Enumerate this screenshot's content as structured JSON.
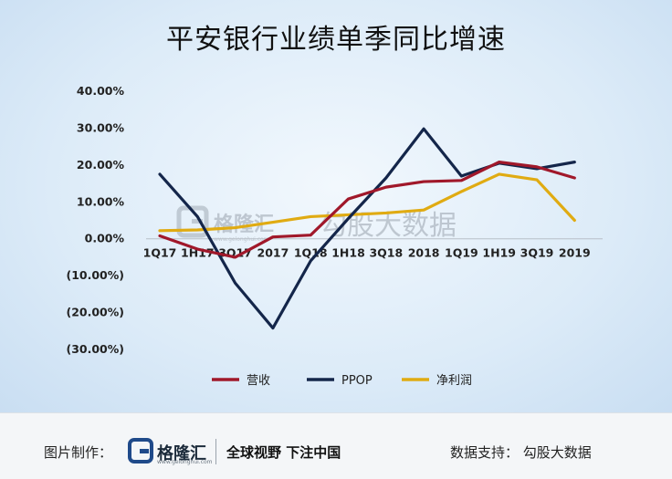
{
  "title": "平安银行业绩单季同比增速",
  "watermark": {
    "brand": "格隆汇",
    "domain": "www.gelonghui.com",
    "text": "勾股大数据"
  },
  "chart_data": {
    "type": "line",
    "categories": [
      "1Q17",
      "1H17",
      "3Q17",
      "2017",
      "1Q18",
      "1H18",
      "3Q18",
      "2018",
      "1Q19",
      "1H19",
      "3Q19",
      "2019"
    ],
    "ylim": [
      -0.3,
      0.4
    ],
    "yticks": [
      0.4,
      0.3,
      0.2,
      0.1,
      0.0,
      -0.1,
      -0.2,
      -0.3
    ],
    "ytick_labels": [
      "40.00%",
      "30.00%",
      "20.00%",
      "10.00%",
      "0.00%",
      "(10.00%)",
      "(20.00%)",
      "(30.00%)"
    ],
    "legend_position": "bottom",
    "series": [
      {
        "name": "营收",
        "color": "#a0182a",
        "values": [
          0.008,
          -0.028,
          -0.05,
          0.005,
          0.01,
          0.108,
          0.14,
          0.155,
          0.158,
          0.208,
          0.195,
          0.165
        ]
      },
      {
        "name": "PPOP",
        "color": "#14264a",
        "values": [
          0.175,
          0.06,
          -0.12,
          -0.242,
          -0.06,
          0.055,
          0.165,
          0.298,
          0.17,
          0.205,
          0.19,
          0.208
        ]
      },
      {
        "name": "净利润",
        "color": "#e0ab12",
        "values": [
          0.022,
          0.024,
          0.03,
          0.045,
          0.06,
          0.065,
          0.07,
          0.078,
          0.128,
          0.175,
          0.16,
          0.05
        ]
      }
    ]
  },
  "footer": {
    "credit": "图片制作：",
    "brand": "格隆汇",
    "domain": "www.gelonghui.com",
    "slogan": "全球视野  下注中国",
    "support": "数据支持：  勾股大数据"
  }
}
